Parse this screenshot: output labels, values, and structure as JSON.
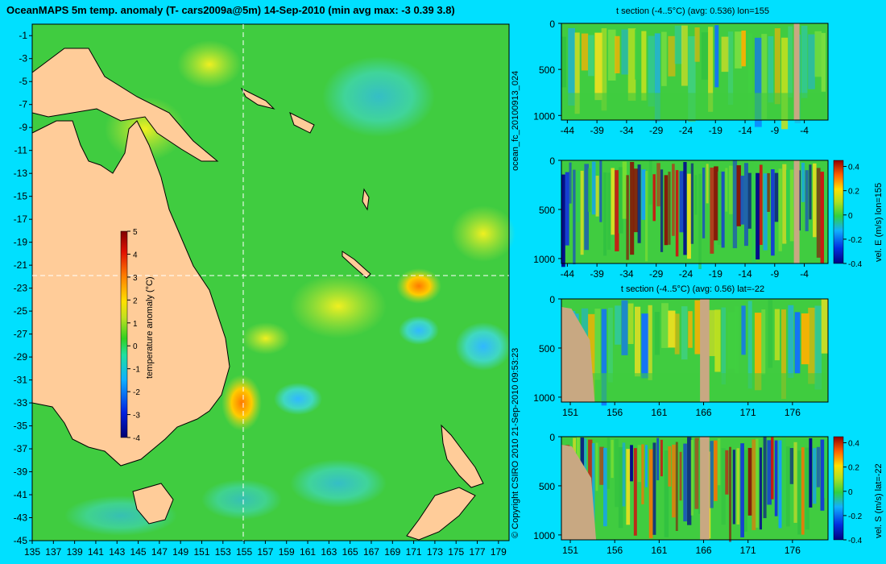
{
  "page": {
    "background": "#00e0ff",
    "land_color": "#ffcc99",
    "section_mask_color": "#c8a882",
    "title": "OceanMAPS 5m temp. anomaly (T- cars2009a@5m) 14-Sep-2010 (min avg max: -3 0.39 3.8)",
    "side_text_upper": "ocean_fc_20100913_024",
    "side_text_lower": "© Copyright CSIRO 2010   21-Sep-2010 09:53:23"
  },
  "chart_data": [
    {
      "type": "heatmap",
      "id": "map",
      "title": "OceanMAPS 5m temp. anomaly (T- cars2009a@5m) 14-Sep-2010 (min avg max: -3 0.39 3.8)",
      "x_ticks": [
        "135",
        "137",
        "139",
        "141",
        "143",
        "145",
        "147",
        "149",
        "151",
        "153",
        "155",
        "157",
        "159",
        "161",
        "163",
        "165",
        "167",
        "169",
        "171",
        "173",
        "175",
        "177",
        "179"
      ],
      "y_ticks": [
        "-1",
        "-3",
        "-5",
        "-7",
        "-9",
        "-11",
        "-13",
        "-15",
        "-17",
        "-19",
        "-21",
        "-23",
        "-25",
        "-27",
        "-29",
        "-31",
        "-33",
        "-35",
        "-37",
        "-39",
        "-41",
        "-43",
        "-45"
      ],
      "xlim": [
        135,
        180
      ],
      "ylim": [
        -45,
        0
      ],
      "crosshair": {
        "lon": 155,
        "lat": -22
      },
      "colorbar": {
        "label": "temperature anomaly (°C)",
        "range": [
          -4,
          5
        ],
        "ticks": [
          "5",
          "4",
          "3",
          "2",
          "1",
          "0",
          "-1",
          "-2",
          "-3",
          "-4"
        ]
      },
      "stats": {
        "min": -3,
        "avg": 0.39,
        "max": 3.8
      }
    },
    {
      "type": "heatmap",
      "id": "t_section_lon",
      "title": "t section (-4..5°C) (avg: 0.536) lon=155",
      "x_ticks": [
        "-44",
        "-39",
        "-34",
        "-29",
        "-24",
        "-19",
        "-14",
        "-9",
        "-4"
      ],
      "y_ticks": [
        "0",
        "500",
        "1000"
      ],
      "xlim": [
        -45,
        0
      ],
      "ylim": [
        1050,
        0
      ]
    },
    {
      "type": "heatmap",
      "id": "vel_e_lon",
      "title": "",
      "x_ticks": [
        "-44",
        "-39",
        "-34",
        "-29",
        "-24",
        "-19",
        "-14",
        "-9",
        "-4"
      ],
      "y_ticks": [
        "0",
        "500",
        "1000"
      ],
      "xlim": [
        -45,
        0
      ],
      "ylim": [
        1050,
        0
      ],
      "colorbar": {
        "label": "vel. E (m/s) lon=155",
        "range": [
          -0.4,
          0.45
        ],
        "ticks": [
          "0.4",
          "0.2",
          "0",
          "-0.2",
          "-0.4"
        ]
      }
    },
    {
      "type": "heatmap",
      "id": "t_section_lat",
      "title": "t section (-4..5°C) (avg: 0.56) lat=-22",
      "x_ticks": [
        "151",
        "156",
        "161",
        "166",
        "171",
        "176"
      ],
      "y_ticks": [
        "0",
        "500",
        "1000"
      ],
      "xlim": [
        150,
        180
      ],
      "ylim": [
        1050,
        0
      ]
    },
    {
      "type": "heatmap",
      "id": "vel_s_lat",
      "title": "",
      "x_ticks": [
        "151",
        "156",
        "161",
        "166",
        "171",
        "176"
      ],
      "y_ticks": [
        "0",
        "500",
        "1000"
      ],
      "xlim": [
        150,
        180
      ],
      "ylim": [
        1050,
        0
      ],
      "colorbar": {
        "label": "vel. S (m/s) lat=-22",
        "range": [
          -0.4,
          0.45
        ],
        "ticks": [
          "0.4",
          "0.2",
          "0",
          "-0.2",
          "-0.4"
        ]
      }
    }
  ]
}
